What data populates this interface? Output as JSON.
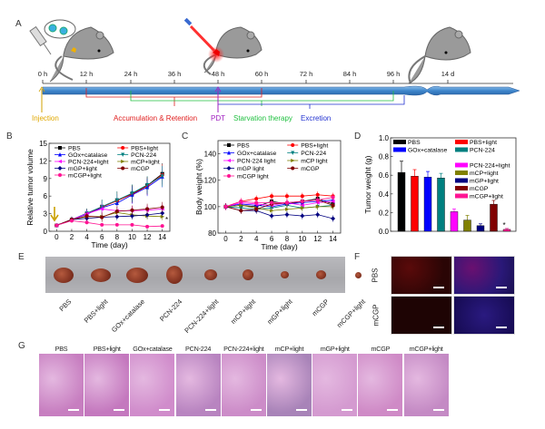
{
  "panels": {
    "a": "A",
    "b": "B",
    "c": "C",
    "d": "D",
    "e": "E",
    "f": "F",
    "g": "G"
  },
  "timeline": {
    "ticks": [
      "0 h",
      "12 h",
      "24 h",
      "36 h",
      "48 h",
      "60 h",
      "72 h",
      "84 h",
      "96 h",
      "14 d"
    ],
    "events": [
      {
        "label": "Injection",
        "color": "#e0a800"
      },
      {
        "label": "Accumulation & Retention",
        "color": "#e02020"
      },
      {
        "label": "PDT",
        "color": "#a020c0"
      },
      {
        "label": "Starvation therapy",
        "color": "#20c040"
      },
      {
        "label": "Excretion",
        "color": "#2030d0"
      }
    ]
  },
  "groups": [
    "PBS",
    "PBS+light",
    "GOx+catalase",
    "PCN-224",
    "PCN-224+light",
    "mCP+light",
    "mGP+light",
    "mCGP",
    "mCGP+light"
  ],
  "colors": [
    "#000000",
    "#ff0000",
    "#0000ff",
    "#008080",
    "#ff00ff",
    "#808000",
    "#000080",
    "#800000",
    "#ff1493"
  ],
  "chart_data": [
    {
      "type": "line",
      "title": "",
      "xlabel": "Time (day)",
      "ylabel": "Relative tumor volume",
      "xlim": [
        -1,
        15
      ],
      "ylim": [
        0,
        15
      ],
      "xticks": [
        0,
        2,
        4,
        6,
        8,
        10,
        12,
        14
      ],
      "yticks": [
        0,
        3,
        6,
        9,
        12,
        15
      ],
      "legend": "top",
      "annotation": "*",
      "x": [
        0,
        2,
        4,
        6,
        8,
        10,
        12,
        14
      ],
      "series": [
        {
          "name": "PBS",
          "values": [
            1,
            2,
            3,
            4.2,
            5.3,
            6.4,
            7.8,
            9.8
          ],
          "err": [
            0,
            0.5,
            0.8,
            1.2,
            1.5,
            1.5,
            1.5,
            1.8
          ]
        },
        {
          "name": "PBS+light",
          "values": [
            1,
            2,
            3,
            4.1,
            5.2,
            6.3,
            7.7,
            9.6
          ],
          "err": [
            0,
            0.5,
            0.8,
            1.2,
            1.5,
            1.5,
            1.5,
            1.8
          ]
        },
        {
          "name": "GOx+catalase",
          "values": [
            1,
            2,
            2.9,
            4,
            4.8,
            6.2,
            7.5,
            9.3
          ],
          "err": [
            0,
            0.5,
            0.8,
            1.2,
            1.5,
            1.5,
            1.5,
            1.8
          ]
        },
        {
          "name": "PCN-224",
          "values": [
            1,
            2,
            3.1,
            4.2,
            5.3,
            6.5,
            7.9,
            9.4
          ],
          "err": [
            0,
            0.5,
            0.8,
            1.2,
            1.5,
            1.5,
            1.5,
            1.8
          ]
        },
        {
          "name": "PCN-224+light",
          "values": [
            1,
            2,
            3,
            3.8,
            3.5,
            3.5,
            3.6,
            3.8
          ],
          "err": [
            0,
            0.4,
            0.6,
            0.8,
            0.8,
            0.8,
            0.9,
            0.9
          ]
        },
        {
          "name": "mCP+light",
          "values": [
            1,
            2,
            2.5,
            2.5,
            3.2,
            2.8,
            2.6,
            2.5
          ],
          "err": [
            0,
            0.4,
            0.5,
            0.6,
            0.6,
            0.6,
            0.6,
            0.6
          ]
        },
        {
          "name": "mGP+light",
          "values": [
            1,
            2,
            2.2,
            2.4,
            2.5,
            2.6,
            2.8,
            3.1
          ],
          "err": [
            0,
            0.4,
            0.5,
            0.6,
            0.6,
            0.6,
            0.6,
            0.6
          ]
        },
        {
          "name": "mCGP",
          "values": [
            1,
            2,
            2.6,
            2.4,
            3.4,
            3.6,
            3.8,
            4.1
          ],
          "err": [
            0,
            0.4,
            0.6,
            0.8,
            0.8,
            0.8,
            0.9,
            0.9
          ]
        },
        {
          "name": "mCGP+light",
          "values": [
            1,
            1.8,
            1.5,
            1.1,
            1.1,
            1.1,
            0.8,
            0.9
          ],
          "err": [
            0,
            0.3,
            0.3,
            0.2,
            0.2,
            0.2,
            0.2,
            0.2
          ]
        }
      ]
    },
    {
      "type": "line",
      "title": "",
      "xlabel": "Time (day)",
      "ylabel": "Body weight (%)",
      "xlim": [
        -1,
        15
      ],
      "ylim": [
        80,
        150
      ],
      "xticks": [
        0,
        2,
        4,
        6,
        8,
        10,
        12,
        14
      ],
      "yticks": [
        80,
        100,
        120,
        140
      ],
      "legend": "top",
      "x": [
        0,
        2,
        4,
        6,
        8,
        10,
        12,
        14
      ],
      "series": [
        {
          "name": "PBS",
          "values": [
            100,
            101,
            100,
            104,
            102,
            104,
            106,
            102
          ]
        },
        {
          "name": "PBS+light",
          "values": [
            100,
            104,
            106,
            108,
            108,
            108,
            109,
            108
          ]
        },
        {
          "name": "GOx+catalase",
          "values": [
            100,
            102,
            101,
            100,
            102,
            103,
            104,
            105
          ]
        },
        {
          "name": "PCN-224",
          "values": [
            100,
            99,
            98,
            99,
            101,
            99,
            100,
            101
          ]
        },
        {
          "name": "PCN-224 light",
          "values": [
            100,
            103,
            102,
            101,
            103,
            101,
            103,
            104
          ]
        },
        {
          "name": "mCP light",
          "values": [
            100,
            101,
            99,
            97,
            98,
            99,
            100,
            100
          ]
        },
        {
          "name": "mGP light",
          "values": [
            100,
            97,
            97,
            93,
            94,
            93,
            94,
            91
          ]
        },
        {
          "name": "mCGP",
          "values": [
            100,
            97,
            98,
            102,
            103,
            104,
            105,
            101
          ]
        },
        {
          "name": "mCGP light",
          "values": [
            100,
            104,
            103,
            103,
            103,
            104,
            105,
            107
          ]
        }
      ]
    },
    {
      "type": "bar",
      "title": "",
      "xlabel": "",
      "ylabel": "Tumor weight (g)",
      "ylim": [
        0,
        1.0
      ],
      "yticks": [
        "0.0",
        "0.2",
        "0.4",
        "0.6",
        "0.8",
        "1.0"
      ],
      "legend": "top-right",
      "annotation": "*",
      "categories": [
        "PBS",
        "PBS+light",
        "GOx+catalase",
        "PCN-224",
        "PCN-224+light",
        "mCP+light",
        "mGP+light",
        "mCGP",
        "mCGP+light"
      ],
      "values": [
        0.63,
        0.59,
        0.58,
        0.57,
        0.21,
        0.12,
        0.06,
        0.29,
        0.02
      ],
      "err": [
        0.12,
        0.07,
        0.06,
        0.05,
        0.03,
        0.05,
        0.02,
        0.04,
        0.01
      ]
    }
  ],
  "panel_f": {
    "rows": [
      "PBS",
      "mCGP"
    ]
  }
}
